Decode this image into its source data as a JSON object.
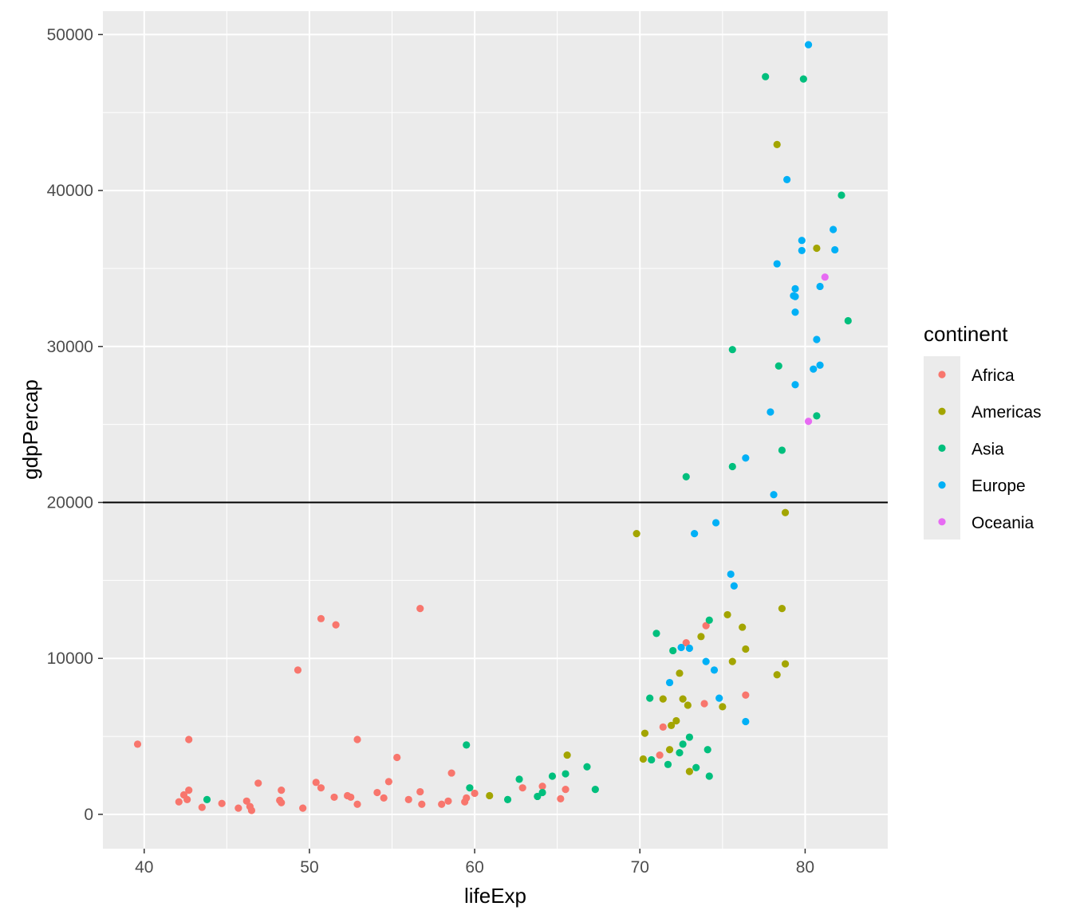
{
  "chart_data": {
    "type": "scatter",
    "xlabel": "lifeExp",
    "ylabel": "gdpPercap",
    "xlim": [
      37.5,
      85
    ],
    "ylim": [
      -2200,
      51500
    ],
    "x_ticks": [
      40,
      50,
      60,
      70,
      80
    ],
    "y_ticks": [
      0,
      10000,
      20000,
      30000,
      40000,
      50000
    ],
    "x_tick_labels": [
      "40",
      "50",
      "60",
      "70",
      "80"
    ],
    "y_tick_labels": [
      "0",
      "10000",
      "20000",
      "30000",
      "40000",
      "50000"
    ],
    "hline": 20000,
    "grid": true,
    "legend": {
      "title": "continent",
      "position": "right"
    },
    "series": [
      {
        "name": "Africa",
        "color": "#F8766D",
        "points": [
          [
            39.6,
            4500
          ],
          [
            42.1,
            800
          ],
          [
            42.4,
            1250
          ],
          [
            42.6,
            950
          ],
          [
            42.7,
            1550
          ],
          [
            42.7,
            4800
          ],
          [
            43.5,
            450
          ],
          [
            44.7,
            700
          ],
          [
            45.7,
            400
          ],
          [
            46.2,
            850
          ],
          [
            46.4,
            500
          ],
          [
            46.5,
            250
          ],
          [
            46.9,
            2000
          ],
          [
            48.2,
            900
          ],
          [
            48.3,
            1550
          ],
          [
            48.3,
            750
          ],
          [
            49.3,
            9250
          ],
          [
            49.6,
            400
          ],
          [
            50.4,
            2050
          ],
          [
            50.7,
            1700
          ],
          [
            50.7,
            12550
          ],
          [
            51.5,
            1100
          ],
          [
            51.6,
            12150
          ],
          [
            52.3,
            1200
          ],
          [
            52.5,
            1100
          ],
          [
            52.9,
            650
          ],
          [
            52.9,
            4800
          ],
          [
            54.1,
            1400
          ],
          [
            54.5,
            1050
          ],
          [
            54.8,
            2100
          ],
          [
            55.3,
            3650
          ],
          [
            56.0,
            950
          ],
          [
            56.7,
            1450
          ],
          [
            56.7,
            13200
          ],
          [
            56.8,
            650
          ],
          [
            58.0,
            650
          ],
          [
            58.4,
            850
          ],
          [
            58.6,
            2650
          ],
          [
            59.4,
            800
          ],
          [
            59.5,
            1050
          ],
          [
            60.0,
            1350
          ],
          [
            62.9,
            1700
          ],
          [
            64.1,
            1800
          ],
          [
            65.2,
            1000
          ],
          [
            65.5,
            1600
          ],
          [
            71.2,
            3800
          ],
          [
            71.4,
            5600
          ],
          [
            72.8,
            11000
          ],
          [
            73.9,
            7100
          ],
          [
            74.0,
            12100
          ],
          [
            76.4,
            7650
          ]
        ]
      },
      {
        "name": "Americas",
        "color": "#A3A500",
        "points": [
          [
            60.9,
            1200
          ],
          [
            65.6,
            3800
          ],
          [
            69.8,
            18000
          ],
          [
            70.2,
            3550
          ],
          [
            70.3,
            5200
          ],
          [
            71.4,
            7400
          ],
          [
            71.8,
            4150
          ],
          [
            71.9,
            5700
          ],
          [
            72.2,
            6000
          ],
          [
            72.4,
            9050
          ],
          [
            72.6,
            7400
          ],
          [
            72.9,
            7000
          ],
          [
            73.0,
            2750
          ],
          [
            73.7,
            11400
          ],
          [
            75.0,
            6900
          ],
          [
            75.3,
            12800
          ],
          [
            75.6,
            9800
          ],
          [
            76.2,
            12000
          ],
          [
            76.4,
            10600
          ],
          [
            78.3,
            8950
          ],
          [
            78.3,
            42950
          ],
          [
            78.6,
            13200
          ],
          [
            78.8,
            19350
          ],
          [
            78.8,
            9650
          ],
          [
            80.7,
            36300
          ]
        ]
      },
      {
        "name": "Asia",
        "color": "#00BF7D",
        "points": [
          [
            43.8,
            950
          ],
          [
            59.5,
            4450
          ],
          [
            59.7,
            1700
          ],
          [
            62.0,
            950
          ],
          [
            62.7,
            2250
          ],
          [
            63.8,
            1150
          ],
          [
            64.1,
            1400
          ],
          [
            64.7,
            2450
          ],
          [
            65.5,
            2600
          ],
          [
            66.8,
            3050
          ],
          [
            67.3,
            1600
          ],
          [
            70.6,
            7450
          ],
          [
            70.7,
            3500
          ],
          [
            71.0,
            11600
          ],
          [
            71.7,
            3200
          ],
          [
            72.0,
            10500
          ],
          [
            72.4,
            3950
          ],
          [
            72.6,
            4500
          ],
          [
            72.8,
            21650
          ],
          [
            73.0,
            4950
          ],
          [
            73.4,
            3000
          ],
          [
            74.1,
            4150
          ],
          [
            74.2,
            12450
          ],
          [
            74.2,
            2450
          ],
          [
            75.6,
            29800
          ],
          [
            75.6,
            22300
          ],
          [
            77.6,
            47300
          ],
          [
            78.4,
            28750
          ],
          [
            78.6,
            23350
          ],
          [
            79.9,
            47150
          ],
          [
            80.7,
            25550
          ],
          [
            82.2,
            39700
          ],
          [
            82.6,
            31650
          ]
        ]
      },
      {
        "name": "Europe",
        "color": "#00B0F6",
        "points": [
          [
            71.8,
            8450
          ],
          [
            72.5,
            10700
          ],
          [
            73.0,
            10650
          ],
          [
            73.3,
            18000
          ],
          [
            74.0,
            9800
          ],
          [
            74.5,
            9250
          ],
          [
            74.6,
            18700
          ],
          [
            74.8,
            7450
          ],
          [
            75.5,
            15400
          ],
          [
            75.7,
            14650
          ],
          [
            76.4,
            5950
          ],
          [
            76.4,
            22850
          ],
          [
            77.9,
            25800
          ],
          [
            78.1,
            20500
          ],
          [
            78.3,
            35300
          ],
          [
            78.9,
            40700
          ],
          [
            79.3,
            33250
          ],
          [
            79.4,
            33700
          ],
          [
            79.4,
            33200
          ],
          [
            79.4,
            32200
          ],
          [
            79.4,
            27550
          ],
          [
            79.8,
            36800
          ],
          [
            79.8,
            36150
          ],
          [
            80.2,
            49350
          ],
          [
            80.5,
            28550
          ],
          [
            80.7,
            30450
          ],
          [
            80.9,
            33850
          ],
          [
            80.9,
            28800
          ],
          [
            81.7,
            37500
          ],
          [
            81.8,
            36200
          ]
        ]
      },
      {
        "name": "Oceania",
        "color": "#E76BF3",
        "points": [
          [
            80.2,
            25200
          ],
          [
            81.2,
            34450
          ]
        ]
      }
    ]
  }
}
